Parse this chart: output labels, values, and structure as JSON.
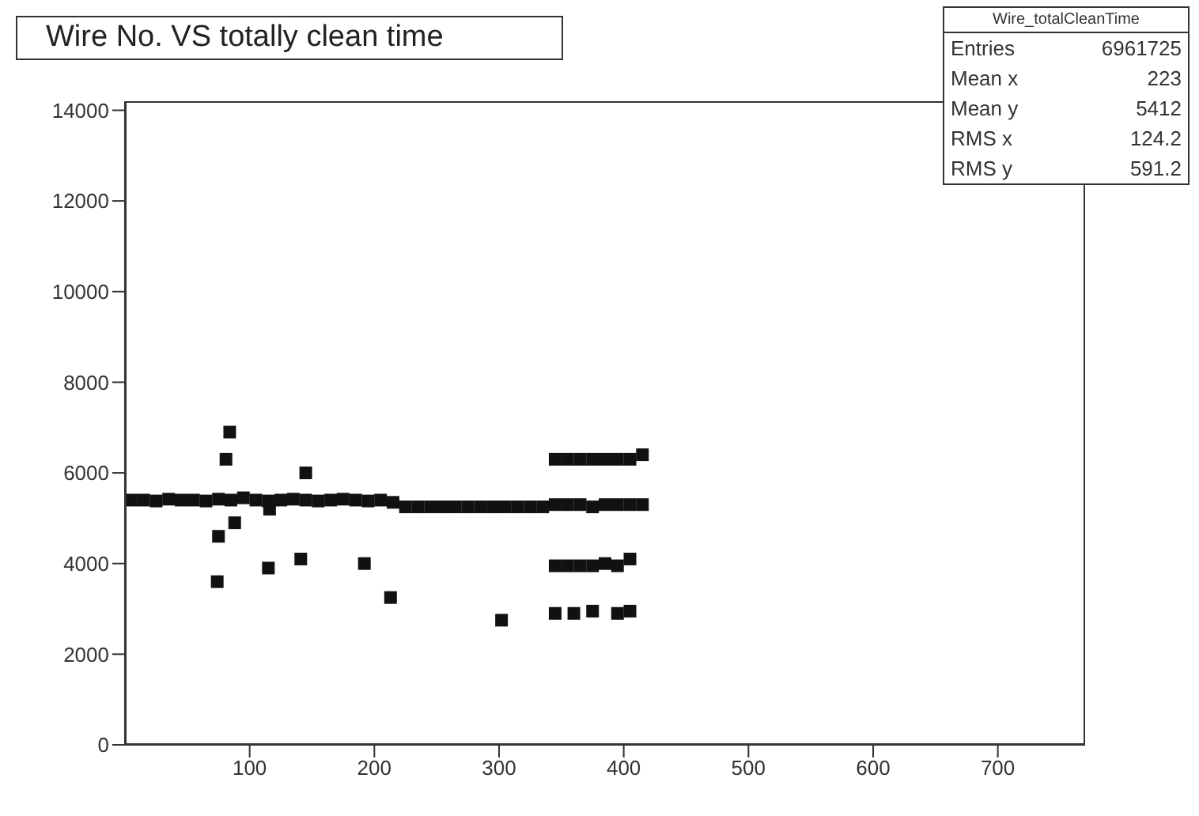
{
  "chart_data": {
    "type": "scatter",
    "title": "Wire No. VS totally clean time",
    "annotations": [
      "Wire_totalCleanTime",
      "Entries",
      "6961725",
      "Mean x",
      "223",
      "Mean y",
      "5412",
      "RMS x",
      "124.2",
      "RMS y",
      "591.2"
    ],
    "series": [
      {
        "color": "#111111",
        "x": [
          5,
          15,
          25,
          35,
          45,
          55,
          65,
          75,
          85,
          95,
          105,
          115,
          125,
          135,
          145,
          155,
          165,
          175,
          185,
          195,
          205,
          215,
          225,
          235,
          245,
          255,
          265,
          275,
          285,
          295,
          305,
          315,
          325,
          335,
          345,
          355,
          365,
          375,
          385,
          395,
          405,
          415,
          345,
          355,
          365,
          375,
          385,
          395,
          405,
          415,
          345,
          355,
          365,
          375,
          385,
          395,
          405,
          345,
          360,
          375,
          395,
          405,
          84,
          81,
          88,
          75,
          74,
          115,
          141,
          192,
          213,
          302,
          145,
          116
        ],
        "values": [
          5400,
          5400,
          5380,
          5420,
          5400,
          5400,
          5380,
          5420,
          5400,
          5450,
          5400,
          5380,
          5400,
          5420,
          5400,
          5380,
          5400,
          5420,
          5400,
          5380,
          5400,
          5350,
          5250,
          5250,
          5250,
          5250,
          5250,
          5250,
          5250,
          5250,
          5250,
          5250,
          5250,
          5250,
          5300,
          5300,
          5300,
          5250,
          5300,
          5300,
          5300,
          5300,
          6300,
          6300,
          6300,
          6300,
          6300,
          6300,
          6300,
          6400,
          3950,
          3950,
          3950,
          3950,
          4000,
          3950,
          4100,
          2900,
          2900,
          2950,
          2900,
          2950,
          6900,
          6300,
          4900,
          4600,
          3600,
          3900,
          4100,
          4000,
          3250,
          2750,
          6000,
          5200
        ]
      }
    ],
    "xlim": [
      0,
      770
    ],
    "xticks": [
      100,
      200,
      300,
      400,
      500,
      600,
      700
    ],
    "ylim": [
      0,
      14200
    ],
    "yticks": [
      0,
      2000,
      4000,
      6000,
      8000,
      10000,
      12000,
      14000
    ],
    "grid": false,
    "legend": false,
    "marker": "square"
  }
}
